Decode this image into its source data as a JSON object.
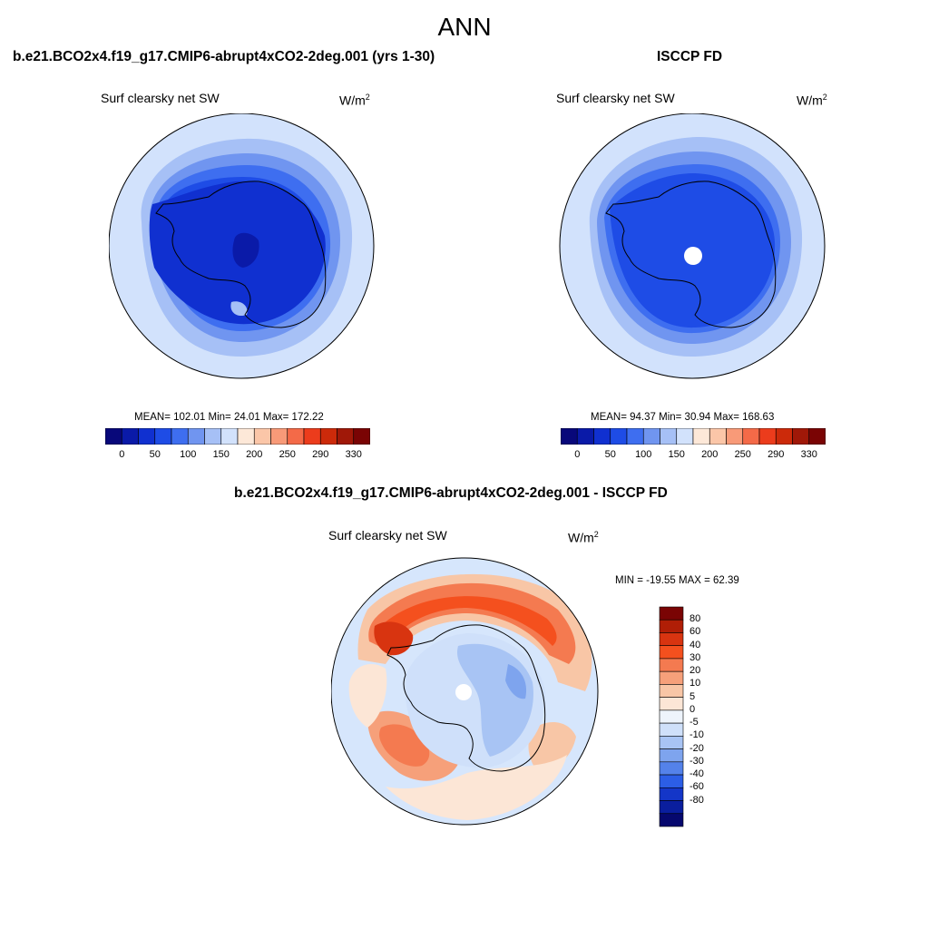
{
  "main_title": "ANN",
  "panels": [
    {
      "title": "b.e21.BCO2x4.f19_g17.CMIP6-abrupt4xCO2-2deg.001 (yrs 1-30)",
      "variable": "Surf clearsky net SW",
      "units_base": "W/m",
      "units_exp": "2",
      "stats": "MEAN= 102.01  Min=  24.01  Max= 172.22"
    },
    {
      "title": "ISCCP FD",
      "variable": "Surf clearsky net SW",
      "units_base": "W/m",
      "units_exp": "2",
      "stats": "MEAN=  94.37  Min=  30.94  Max= 168.63"
    },
    {
      "title": "b.e21.BCO2x4.f19_g17.CMIP6-abrupt4xCO2-2deg.001 - ISCCP FD",
      "variable": "Surf clearsky net SW",
      "units_base": "W/m",
      "units_exp": "2",
      "stats": "MIN = -19.55 MAX =  62.39"
    }
  ],
  "abs_colorbar": {
    "colors": [
      "#08087a",
      "#0a1aa8",
      "#1030d0",
      "#1e4ce6",
      "#3e6ef0",
      "#7095f0",
      "#a6c0f6",
      "#d2e2fc",
      "#fde8d8",
      "#fbc6a8",
      "#f89a78",
      "#f46a48",
      "#ec3c1c",
      "#cc2a0a",
      "#a01808",
      "#7a0404"
    ],
    "labels": [
      "0",
      "50",
      "100",
      "150",
      "200",
      "250",
      "290",
      "330"
    ]
  },
  "diff_colorbar": {
    "colors": [
      "#7a0404",
      "#b01e06",
      "#d83410",
      "#f4501e",
      "#f47a50",
      "#f6a07a",
      "#f8c6a6",
      "#fce6d6",
      "#eef4fc",
      "#cfe0fa",
      "#a8c4f4",
      "#7ea4ee",
      "#5482ea",
      "#2c5ee6",
      "#1436c8",
      "#0a1e9e",
      "#06086e"
    ],
    "labels": [
      "80",
      "60",
      "40",
      "30",
      "20",
      "10",
      "5",
      "0",
      "-5",
      "-10",
      "-20",
      "-30",
      "-40",
      "-60",
      "-80"
    ]
  },
  "map_colors": {
    "ring1": "#d2e2fc",
    "ring2": "#a6c0f6",
    "ring3": "#7095f0",
    "ring4": "#3e6ef0",
    "ring5": "#1e4ce6",
    "ring6": "#1030d0",
    "ring7": "#0a1aa8",
    "missing": "#ffffff",
    "diff_bg": "#d6e6fc",
    "diff_warm1": "#fce6d6",
    "diff_warm2": "#f8c6a6",
    "diff_warm3": "#f6a07a",
    "diff_warm4": "#f47a50",
    "diff_warm5": "#f4501e",
    "diff_warm6": "#d83410",
    "diff_cool1": "#cfe0fa",
    "diff_cool2": "#a8c4f4",
    "diff_cool3": "#7ea4ee"
  }
}
